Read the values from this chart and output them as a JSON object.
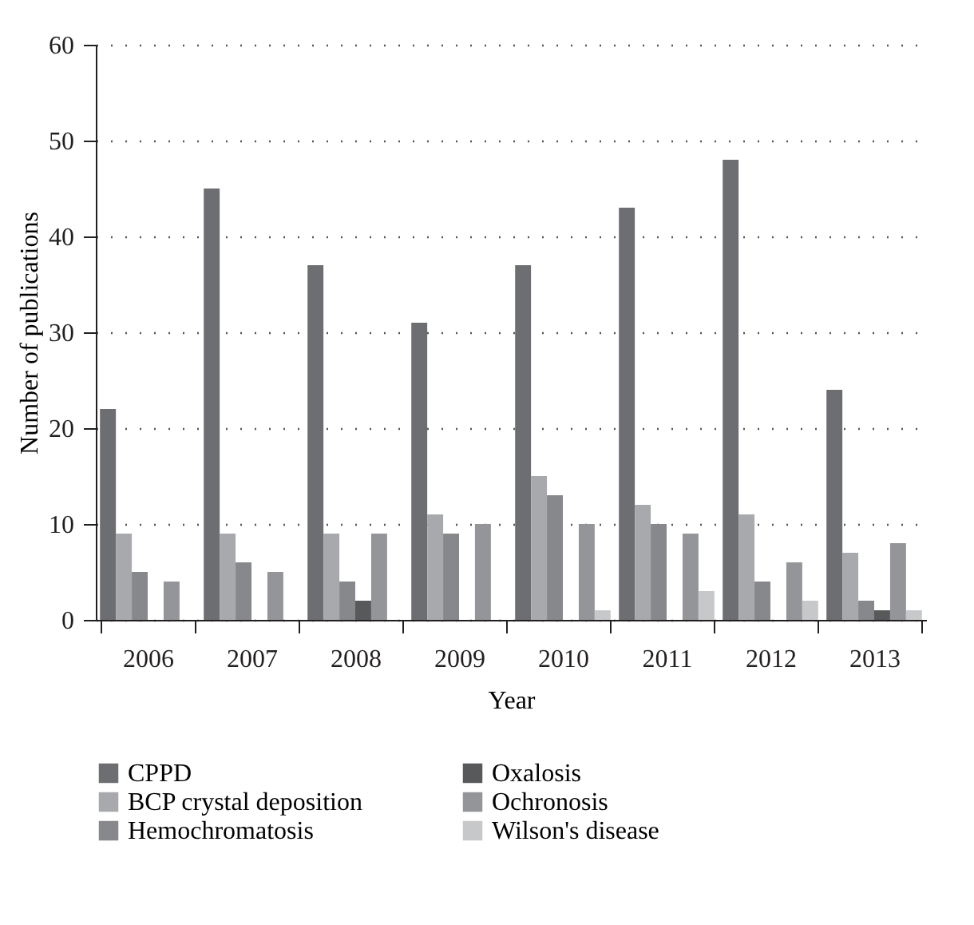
{
  "chart_data": {
    "type": "bar",
    "xlabel": "Year",
    "ylabel": "Number of publications",
    "categories": [
      "2006",
      "2007",
      "2008",
      "2009",
      "2010",
      "2011",
      "2012",
      "2013"
    ],
    "series": [
      {
        "name": "CPPD",
        "color": "#6d6e71",
        "values": [
          22,
          45,
          37,
          31,
          37,
          43,
          48,
          24
        ]
      },
      {
        "name": "BCP crystal deposition",
        "color": "#a7a9ac",
        "values": [
          9,
          9,
          9,
          11,
          15,
          12,
          11,
          7
        ]
      },
      {
        "name": "Hemochromatosis",
        "color": "#87888b",
        "values": [
          5,
          6,
          4,
          9,
          13,
          10,
          4,
          2
        ]
      },
      {
        "name": "Oxalosis",
        "color": "#58595b",
        "values": [
          0,
          0,
          2,
          0,
          0,
          0,
          0,
          1
        ]
      },
      {
        "name": "Ochronosis",
        "color": "#939598",
        "values": [
          4,
          5,
          9,
          10,
          10,
          9,
          6,
          8
        ]
      },
      {
        "name": "Wilson's disease",
        "color": "#c7c8ca",
        "values": [
          0,
          0,
          0,
          0,
          1,
          3,
          2,
          1
        ]
      }
    ],
    "ylim": [
      0,
      60
    ],
    "yticks": [
      0,
      10,
      20,
      30,
      40,
      50,
      60
    ],
    "grid": "y",
    "legend": "bottom"
  }
}
